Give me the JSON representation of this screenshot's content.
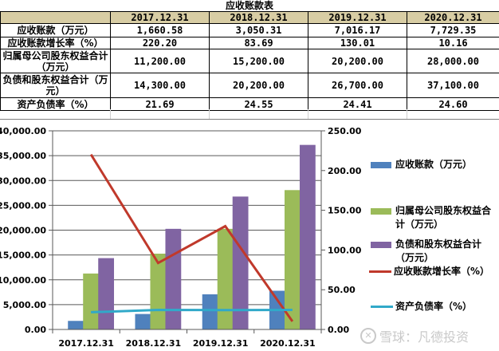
{
  "table": {
    "title": "应收账款表",
    "header_color": "#d8cda4",
    "columns": [
      "",
      "2017.12.31",
      "2018.12.31",
      "2019.12.31",
      "2020.12.31"
    ],
    "rows": [
      {
        "label": "应收账款（万元）",
        "values": [
          "1,660.58",
          "3,050.31",
          "7,016.17",
          "7,729.35"
        ]
      },
      {
        "label": "应收账款增长率（%）",
        "values": [
          "220.20",
          "83.69",
          "130.01",
          "10.16"
        ]
      },
      {
        "label": "归属母公司股东权益合计（万元）",
        "values": [
          "11,200.00",
          "15,200.00",
          "20,200.00",
          "28,000.00"
        ]
      },
      {
        "label": "负债和股东权益合计（万元）",
        "values": [
          "14,300.00",
          "20,200.00",
          "26,700.00",
          "37,100.00"
        ]
      },
      {
        "label": "资产负债率（%）",
        "values": [
          "21.69",
          "24.55",
          "24.41",
          "24.60"
        ]
      }
    ]
  },
  "chart_data": {
    "type": "bar",
    "title": "",
    "categories": [
      "2017.12.31",
      "2018.12.31",
      "2019.12.31",
      "2020.12.31"
    ],
    "series": [
      {
        "name": "应收账款（万元）",
        "type": "bar",
        "axis": "left",
        "color": "#4f81bd",
        "values": [
          1660.58,
          3050.31,
          7016.17,
          7729.35
        ]
      },
      {
        "name": "归属母公司股东权益合计（万元）",
        "type": "bar",
        "axis": "left",
        "color": "#9bbb59",
        "values": [
          11200.0,
          15200.0,
          20200.0,
          28000.0
        ]
      },
      {
        "name": "负债和股东权益合计（万元）",
        "type": "bar",
        "axis": "left",
        "color": "#8064a2",
        "values": [
          14300.0,
          20200.0,
          26700.0,
          37100.0
        ]
      },
      {
        "name": "应收账款增长率（%）",
        "type": "line",
        "axis": "right",
        "color": "#c0392b",
        "values": [
          220.2,
          83.69,
          130.01,
          10.16
        ]
      },
      {
        "name": "资产负债率（%）",
        "type": "line",
        "axis": "right",
        "color": "#31a9c9",
        "values": [
          21.69,
          24.55,
          24.41,
          24.6
        ]
      }
    ],
    "left_axis": {
      "ylim": [
        0,
        40000
      ],
      "ticks": [
        "0.00",
        "5,000.00",
        "10,000.00",
        "15,000.00",
        "20,000.00",
        "25,000.00",
        "30,000.00",
        "35,000.00",
        "40,000.00"
      ]
    },
    "right_axis": {
      "ylim": [
        0,
        250
      ],
      "ticks": [
        "0.00",
        "50.00",
        "100.00",
        "150.00",
        "200.00",
        "250.00"
      ]
    },
    "xlabel": "",
    "ylabel": "",
    "grid": true,
    "legend_position": "right"
  },
  "legend": {
    "items": [
      {
        "label": "应收账款（万元）",
        "kind": "box",
        "color": "#4f81bd"
      },
      {
        "label": "归属母公司股东权益合计（万元）",
        "kind": "box",
        "color": "#9bbb59"
      },
      {
        "label": "负债和股东权益合计（万元）",
        "kind": "box",
        "color": "#8064a2"
      },
      {
        "label": "应收账款增长率（%）",
        "kind": "line",
        "color": "#c0392b"
      },
      {
        "label": "资产负债率（%）",
        "kind": "line",
        "color": "#31a9c9"
      }
    ]
  },
  "watermark": {
    "text": "雪球：凡德投资"
  }
}
